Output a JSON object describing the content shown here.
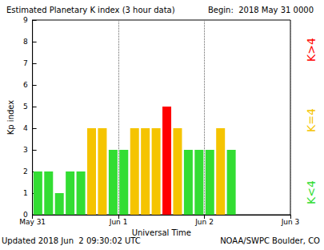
{
  "chart_data": {
    "type": "bar",
    "title": "Estimated Planetary K index (3 hour data)",
    "subtitle": "Begin:  2018 May 31 0000",
    "x_label": "Universal Time",
    "y_label": "Kp index",
    "x": [
      1.5,
      4.5,
      7.5,
      10.5,
      13.5,
      16.5,
      19.5,
      22.5,
      25.5,
      28.5,
      31.5,
      34.5,
      37.5,
      40.5,
      43.5,
      46.5,
      49.5,
      52.5,
      55.5
    ],
    "values": [
      2,
      2,
      1,
      2,
      2,
      4,
      4,
      3,
      3,
      4,
      4,
      4,
      5,
      4,
      3,
      3,
      3,
      4,
      3
    ],
    "colors": [
      "#33dd33",
      "#33dd33",
      "#33dd33",
      "#33dd33",
      "#33dd33",
      "#f5c400",
      "#f5c400",
      "#33dd33",
      "#33dd33",
      "#f5c400",
      "#f5c400",
      "#f5c400",
      "#ff0000",
      "#f5c400",
      "#33dd33",
      "#33dd33",
      "#33dd33",
      "#f5c400",
      "#33dd33"
    ],
    "xlim": [
      0,
      72
    ],
    "xticks": [
      {
        "value": 0,
        "label": "May 31"
      },
      {
        "value": 24,
        "label": "Jun 1"
      },
      {
        "value": 48,
        "label": "Jun 2"
      },
      {
        "value": 72,
        "label": "Jun 3"
      }
    ],
    "ylim": [
      0,
      9
    ],
    "yticks": [
      0,
      1,
      2,
      3,
      4,
      5,
      6,
      7,
      8,
      9
    ],
    "grid": true,
    "annotations": [
      {
        "text": "Updated 2018 Jun  2 09:30:02 UTC"
      },
      {
        "text": "NOAA/SWPC Boulder, CO"
      },
      {
        "text": "K<4",
        "color": "#33dd33"
      },
      {
        "text": "K=4",
        "color": "#f5c400"
      },
      {
        "text": "K>4",
        "color": "#ff0000"
      }
    ]
  }
}
